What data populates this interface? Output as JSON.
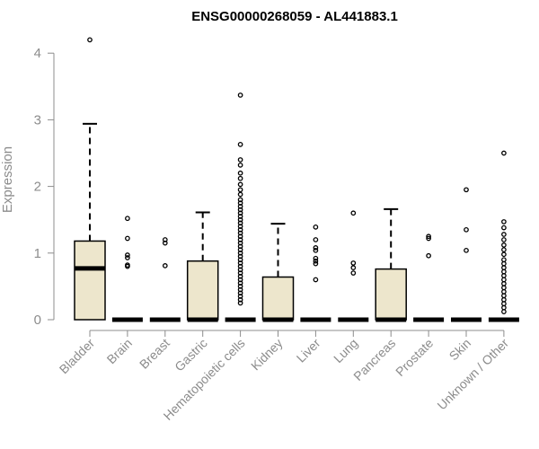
{
  "chart_data": {
    "type": "box",
    "title": "ENSG00000268059 - AL441883.1",
    "xlabel": "",
    "ylabel": "Expression",
    "ylim": [
      0,
      4.2
    ],
    "yticks": [
      0,
      1,
      2,
      3,
      4
    ],
    "grid": false,
    "box_fill": "#ede6cc",
    "categories": [
      "Bladder",
      "Brain",
      "Breast",
      "Gastric",
      "Hematopoietic cells",
      "Kidney",
      "Liver",
      "Lung",
      "Pancreas",
      "Prostate",
      "Skin",
      "Unknown / Other"
    ],
    "boxes": [
      {
        "q1": 0,
        "median": 0.77,
        "q3": 1.18,
        "whisker_low": 0,
        "whisker_high": 2.94,
        "outliers": [
          4.2
        ]
      },
      {
        "q1": 0,
        "median": 0,
        "q3": 0,
        "whisker_low": 0,
        "whisker_high": 0,
        "outliers": [
          1.52,
          1.22,
          0.97,
          0.93,
          0.82,
          0.8
        ]
      },
      {
        "q1": 0,
        "median": 0,
        "q3": 0,
        "whisker_low": 0,
        "whisker_high": 0,
        "outliers": [
          1.2,
          1.15,
          0.81
        ]
      },
      {
        "q1": 0,
        "median": 0,
        "q3": 0.88,
        "whisker_low": 0,
        "whisker_high": 1.61,
        "outliers": []
      },
      {
        "q1": 0,
        "median": 0,
        "q3": 0,
        "whisker_low": 0,
        "whisker_high": 0,
        "outliers": [
          3.37,
          2.63,
          2.4,
          2.32,
          2.2,
          2.12,
          2.03,
          1.95,
          1.88,
          1.8,
          1.75,
          1.7,
          1.65,
          1.6,
          1.55,
          1.5,
          1.45,
          1.4,
          1.35,
          1.3,
          1.25,
          1.2,
          1.15,
          1.1,
          1.05,
          1.0,
          0.95,
          0.9,
          0.85,
          0.8,
          0.75,
          0.7,
          0.65,
          0.6,
          0.55,
          0.5,
          0.45,
          0.4,
          0.35,
          0.3,
          0.25
        ]
      },
      {
        "q1": 0,
        "median": 0,
        "q3": 0.64,
        "whisker_low": 0,
        "whisker_high": 1.44,
        "outliers": []
      },
      {
        "q1": 0,
        "median": 0,
        "q3": 0,
        "whisker_low": 0,
        "whisker_high": 0,
        "outliers": [
          1.39,
          1.2,
          1.08,
          1.04,
          0.92,
          0.88,
          0.84,
          0.6
        ]
      },
      {
        "q1": 0,
        "median": 0,
        "q3": 0,
        "whisker_low": 0,
        "whisker_high": 0,
        "outliers": [
          1.6,
          0.85,
          0.78,
          0.7
        ]
      },
      {
        "q1": 0,
        "median": 0,
        "q3": 0.76,
        "whisker_low": 0,
        "whisker_high": 1.66,
        "outliers": []
      },
      {
        "q1": 0,
        "median": 0,
        "q3": 0,
        "whisker_low": 0,
        "whisker_high": 0,
        "outliers": [
          1.25,
          1.22,
          0.96
        ]
      },
      {
        "q1": 0,
        "median": 0,
        "q3": 0,
        "whisker_low": 0,
        "whisker_high": 0,
        "outliers": [
          1.95,
          1.35,
          1.04
        ]
      },
      {
        "q1": 0,
        "median": 0,
        "q3": 0,
        "whisker_low": 0,
        "whisker_high": 0,
        "outliers": [
          2.5,
          1.47,
          1.38,
          1.28,
          1.2,
          1.12,
          1.05,
          0.98,
          0.9,
          0.84,
          0.78,
          0.72,
          0.66,
          0.6,
          0.54,
          0.48,
          0.42,
          0.36,
          0.3,
          0.24,
          0.18,
          0.12
        ]
      }
    ]
  }
}
